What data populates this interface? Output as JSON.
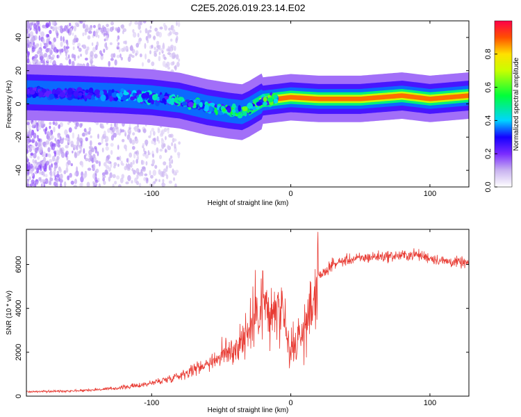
{
  "title": "C2E5.2026.019.23.14.E02",
  "colors": {
    "snr_line": "#e83a32",
    "background": "#ffffff",
    "axis": "#000000"
  },
  "chart_data": [
    {
      "type": "heatmap",
      "xlabel": "Height of straight line (km)",
      "ylabel": "Frequency (Hz)",
      "xlim": [
        -190,
        128
      ],
      "ylim": [
        -50,
        50
      ],
      "xticks": [
        -100,
        0,
        100
      ],
      "yticks": [
        -40,
        -20,
        0,
        20,
        40
      ],
      "ridge_frequency": {
        "x": [
          -190,
          -150,
          -120,
          -100,
          -80,
          -60,
          -45,
          -35,
          -30,
          -20,
          -10,
          0,
          20,
          50,
          80,
          100,
          128
        ],
        "y": [
          7,
          6,
          5,
          4,
          2,
          -2,
          -4,
          -5,
          -3,
          2,
          3,
          4,
          3,
          3,
          5,
          3,
          5
        ]
      },
      "colorbar": {
        "label": "Normalized spectral amplitude",
        "range": [
          0,
          1
        ],
        "ticks": [
          0.0,
          0.2,
          0.4,
          0.6,
          0.8
        ]
      }
    },
    {
      "type": "line",
      "xlabel": "Height of straight line (km)",
      "ylabel": "SNR (10 * v/v)",
      "xlim": [
        -190,
        128
      ],
      "ylim": [
        0,
        7600
      ],
      "xticks": [
        -100,
        0,
        100
      ],
      "yticks": [
        0,
        2000,
        4000,
        6000
      ],
      "series": [
        {
          "name": "SNR",
          "x": [
            -190,
            -170,
            -150,
            -130,
            -110,
            -100,
            -90,
            -80,
            -70,
            -60,
            -50,
            -40,
            -35,
            -30,
            -25,
            -20,
            -15,
            -10,
            -5,
            0,
            5,
            10,
            15,
            20,
            30,
            40,
            60,
            80,
            90,
            100,
            110,
            120,
            128
          ],
          "y": [
            200,
            220,
            260,
            330,
            480,
            600,
            750,
            950,
            1200,
            1500,
            1800,
            2200,
            2600,
            3000,
            3800,
            4500,
            3500,
            4000,
            3200,
            1800,
            2500,
            3000,
            4200,
            5400,
            6000,
            6200,
            6350,
            6400,
            6450,
            6300,
            6150,
            6100,
            6050
          ]
        }
      ]
    }
  ]
}
